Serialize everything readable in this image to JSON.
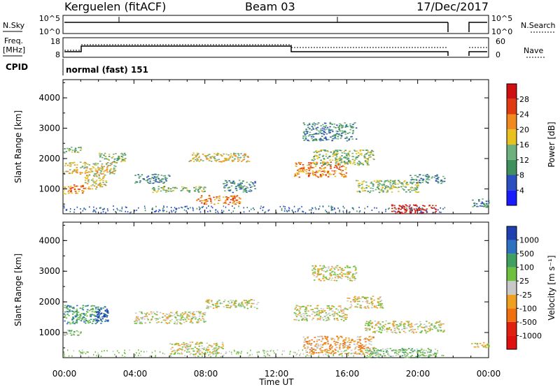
{
  "header": {
    "station": "Kerguelen (fitACF)",
    "beam": "Beam 03",
    "date": "17/Dec/2017"
  },
  "noise_panel": {
    "left_label": "N.Sky",
    "left_ticks": [
      "10^5",
      "10^0"
    ],
    "right_ticks": [
      "10^5",
      "10^0"
    ],
    "right_label": "N.Search"
  },
  "freq_panel": {
    "left_label_1": "Freq.",
    "left_label_2": "[MHz]",
    "left_ticks": [
      "18",
      "8"
    ],
    "right_ticks": [
      "60",
      "0"
    ],
    "right_label": "Nave"
  },
  "cpid": {
    "label": "CPID",
    "value": "normal (fast) 151"
  },
  "x_axis": {
    "label": "Time UT",
    "ticks": [
      "00:00",
      "04:00",
      "08:00",
      "12:00",
      "16:00",
      "20:00",
      "00:00"
    ]
  },
  "chart_data": [
    {
      "type": "heatmap",
      "quantity": "Power",
      "ylabel": "Slant Range [km]",
      "yticks": [
        "1000",
        "2000",
        "3000",
        "4000"
      ],
      "ylim": [
        180,
        4600
      ],
      "xlim_hours": [
        0,
        24
      ],
      "colorbar_label": "Power [dB]",
      "colorbar_ticks": [
        "4",
        "8",
        "12",
        "16",
        "20",
        "24",
        "28"
      ],
      "colors": [
        "#1a1aff",
        "#2b4fbf",
        "#3f8f5f",
        "#6fb07f",
        "#e8c020",
        "#f08a20",
        "#e03a10",
        "#d01010"
      ],
      "echo_regions": [
        {
          "t0": 0.0,
          "t1": 1.2,
          "r0": 850,
          "r1": 1150,
          "level": 5
        },
        {
          "t0": 0.0,
          "t1": 3.0,
          "r0": 1500,
          "r1": 1900,
          "level": 4
        },
        {
          "t0": 0.0,
          "t1": 1.0,
          "r0": 2200,
          "r1": 2400,
          "level": 3
        },
        {
          "t0": 1.2,
          "t1": 2.4,
          "r0": 1000,
          "r1": 1500,
          "level": 4
        },
        {
          "t0": 2.0,
          "t1": 3.5,
          "r0": 1900,
          "r1": 2200,
          "level": 3
        },
        {
          "t0": 4.0,
          "t1": 6.0,
          "r0": 1200,
          "r1": 1500,
          "level": 2
        },
        {
          "t0": 5.0,
          "t1": 8.0,
          "r0": 900,
          "r1": 1100,
          "level": 3
        },
        {
          "t0": 7.5,
          "t1": 10.0,
          "r0": 500,
          "r1": 800,
          "level": 5
        },
        {
          "t0": 7.0,
          "t1": 10.5,
          "r0": 1900,
          "r1": 2200,
          "level": 4
        },
        {
          "t0": 9.0,
          "t1": 10.8,
          "r0": 900,
          "r1": 1300,
          "level": 2
        },
        {
          "t0": 13.0,
          "t1": 16.0,
          "r0": 1400,
          "r1": 1900,
          "level": 5
        },
        {
          "t0": 14.0,
          "t1": 17.5,
          "r0": 1800,
          "r1": 2300,
          "level": 3
        },
        {
          "t0": 13.5,
          "t1": 16.5,
          "r0": 2600,
          "r1": 3200,
          "level": 2
        },
        {
          "t0": 16.5,
          "t1": 20.0,
          "r0": 900,
          "r1": 1300,
          "level": 3
        },
        {
          "t0": 18.5,
          "t1": 21.0,
          "r0": 200,
          "r1": 500,
          "level": 7
        },
        {
          "t0": 19.5,
          "t1": 21.5,
          "r0": 1200,
          "r1": 1500,
          "level": 2
        },
        {
          "t0": 23.0,
          "t1": 24.0,
          "r0": 400,
          "r1": 700,
          "level": 2
        }
      ]
    },
    {
      "type": "heatmap",
      "quantity": "Velocity",
      "ylabel": "Slant Range [km]",
      "yticks": [
        "1000",
        "2000",
        "3000",
        "4000"
      ],
      "ylim": [
        180,
        4600
      ],
      "xlim_hours": [
        0,
        24
      ],
      "colorbar_label": "Velocity [m s⁻¹]",
      "colorbar_ticks": [
        "1000",
        "500",
        "100",
        "25",
        "-25",
        "-100",
        "-500",
        "-1000"
      ],
      "colors": [
        "#2040b0",
        "#3070c0",
        "#40a060",
        "#70c040",
        "#c8c8c8",
        "#f0a020",
        "#f07010",
        "#e02010",
        "#e01010"
      ],
      "echo_regions": [
        {
          "t0": 0.0,
          "t1": 1.0,
          "r0": 900,
          "r1": 1100,
          "level": 3
        },
        {
          "t0": 0.0,
          "t1": 2.5,
          "r0": 1300,
          "r1": 1900,
          "level": 2
        },
        {
          "t0": 1.8,
          "t1": 2.5,
          "r0": 1400,
          "r1": 1800,
          "level": 0
        },
        {
          "t0": 4.0,
          "t1": 8.0,
          "r0": 1300,
          "r1": 1700,
          "level": 4
        },
        {
          "t0": 6.0,
          "t1": 9.0,
          "r0": 300,
          "r1": 700,
          "level": 4
        },
        {
          "t0": 8.0,
          "t1": 11.0,
          "r0": 1800,
          "r1": 2100,
          "level": 4
        },
        {
          "t0": 13.0,
          "t1": 16.0,
          "r0": 1400,
          "r1": 1900,
          "level": 4
        },
        {
          "t0": 16.0,
          "t1": 18.0,
          "r0": 1800,
          "r1": 2200,
          "level": 4
        },
        {
          "t0": 14.0,
          "t1": 16.5,
          "r0": 2700,
          "r1": 3200,
          "level": 4
        },
        {
          "t0": 13.5,
          "t1": 17.5,
          "r0": 300,
          "r1": 900,
          "level": 5
        },
        {
          "t0": 17.0,
          "t1": 21.5,
          "r0": 1000,
          "r1": 1400,
          "level": 4
        },
        {
          "t0": 17.0,
          "t1": 21.0,
          "r0": 200,
          "r1": 500,
          "level": 3
        },
        {
          "t0": 23.0,
          "t1": 24.0,
          "r0": 500,
          "r1": 700,
          "level": 4
        }
      ]
    }
  ]
}
